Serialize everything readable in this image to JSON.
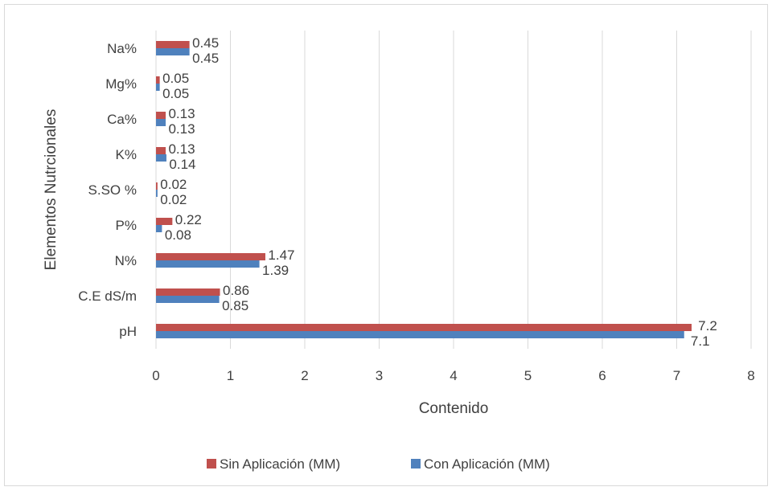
{
  "chart_data": {
    "type": "bar",
    "orientation": "horizontal",
    "categories": [
      "pH",
      "C.E dS/m",
      "N%",
      "P%",
      "S.SO %",
      "K%",
      "Ca%",
      "Mg%",
      "Na%"
    ],
    "series": [
      {
        "name": "Sin Aplicación (MM)",
        "color": "#c0504d",
        "values": [
          7.2,
          0.86,
          1.47,
          0.22,
          0.02,
          0.13,
          0.13,
          0.05,
          0.45
        ]
      },
      {
        "name": "Con Aplicación (MM)",
        "color": "#4f81bd",
        "values": [
          7.1,
          0.85,
          1.39,
          0.08,
          0.02,
          0.14,
          0.13,
          0.05,
          0.45
        ]
      }
    ],
    "xlabel": "Contenido",
    "ylabel": "Elementos  Nutrcionales",
    "xlim": [
      0,
      8
    ],
    "xticks": [
      "0",
      "1",
      "2",
      "3",
      "4",
      "5",
      "6",
      "7",
      "8"
    ],
    "grid": "vertical",
    "legend_position": "bottom"
  }
}
